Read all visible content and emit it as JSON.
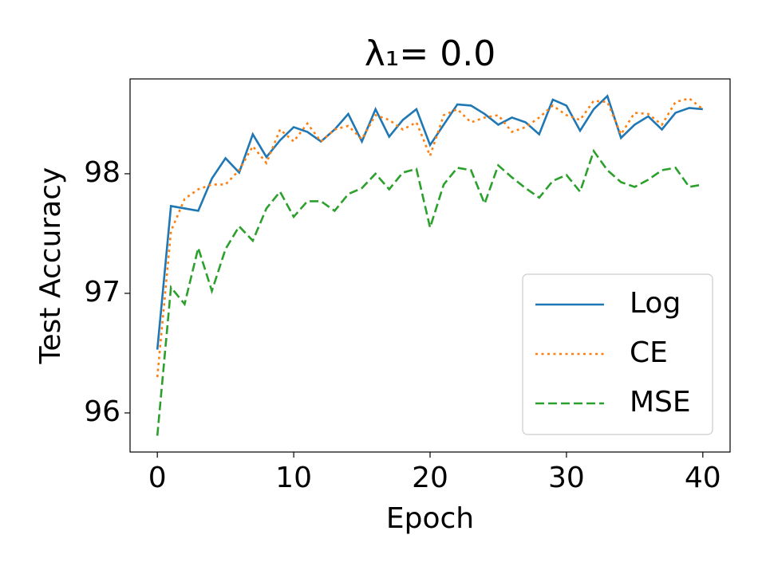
{
  "chart_data": {
    "type": "line",
    "title": "λ₁= 0.0",
    "x_label": "Epoch",
    "y_label": "Test Accuracy",
    "x": [
      0,
      1,
      2,
      3,
      4,
      5,
      6,
      7,
      8,
      9,
      10,
      11,
      12,
      13,
      14,
      15,
      16,
      17,
      18,
      19,
      20,
      21,
      22,
      23,
      24,
      25,
      26,
      27,
      28,
      29,
      30,
      31,
      32,
      33,
      34,
      35,
      36,
      37,
      38,
      39,
      40
    ],
    "series": [
      {
        "name": "Log",
        "color": "#1f77b4",
        "style": "solid",
        "values": [
          96.53,
          97.73,
          97.71,
          97.69,
          97.96,
          98.13,
          98.01,
          98.33,
          98.14,
          98.28,
          98.39,
          98.35,
          98.27,
          98.37,
          98.5,
          98.27,
          98.54,
          98.31,
          98.45,
          98.54,
          98.24,
          98.41,
          98.58,
          98.57,
          98.5,
          98.41,
          98.47,
          98.43,
          98.33,
          98.62,
          98.57,
          98.36,
          98.54,
          98.65,
          98.3,
          98.41,
          98.48,
          98.37,
          98.51,
          98.55,
          98.54
        ]
      },
      {
        "name": "CE",
        "color": "#ff7f0e",
        "style": "dotted",
        "values": [
          96.3,
          97.52,
          97.79,
          97.87,
          97.91,
          97.91,
          98.03,
          98.23,
          98.09,
          98.37,
          98.27,
          98.42,
          98.27,
          98.37,
          98.4,
          98.29,
          98.49,
          98.45,
          98.37,
          98.43,
          98.15,
          98.49,
          98.54,
          98.43,
          98.47,
          98.49,
          98.35,
          98.39,
          98.47,
          98.57,
          98.49,
          98.45,
          98.61,
          98.6,
          98.33,
          98.51,
          98.5,
          98.41,
          98.6,
          98.63,
          98.54
        ]
      },
      {
        "name": "MSE",
        "color": "#2ca02c",
        "style": "dashed",
        "values": [
          95.81,
          97.05,
          96.91,
          97.38,
          97.02,
          97.37,
          97.56,
          97.44,
          97.71,
          97.85,
          97.64,
          97.77,
          97.77,
          97.69,
          97.83,
          97.88,
          98.0,
          97.87,
          98.01,
          98.04,
          97.55,
          97.91,
          98.05,
          98.03,
          97.75,
          98.07,
          97.97,
          97.88,
          97.8,
          97.94,
          97.99,
          97.85,
          98.19,
          98.03,
          97.93,
          97.89,
          97.95,
          98.03,
          98.05,
          97.89,
          97.91
        ]
      }
    ],
    "xlim": [
      -2,
      42
    ],
    "xticks": [
      0,
      10,
      20,
      30,
      40
    ],
    "ylim": [
      95.673,
      98.793
    ],
    "yticks": [
      96,
      97,
      98
    ],
    "legend": "lower right"
  }
}
